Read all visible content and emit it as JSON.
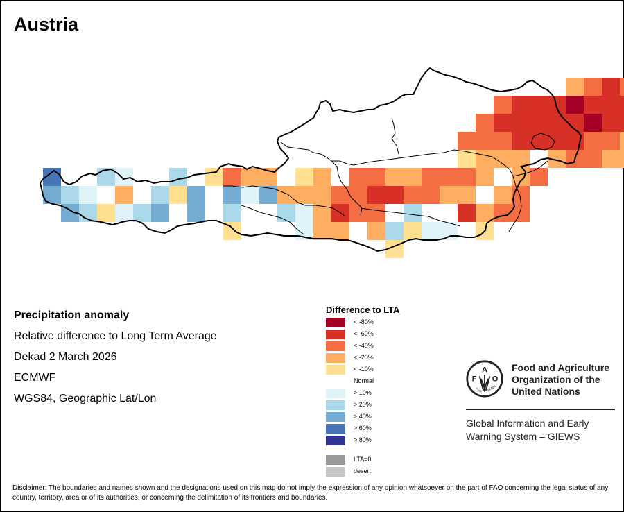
{
  "title": "Austria",
  "info": {
    "heading": "Precipitation anomaly",
    "line1": "Relative difference to Long Term Average",
    "line2": "Dekad 2 March 2026",
    "line3": "ECMWF",
    "line4": "WGS84, Geographic Lat/Lon"
  },
  "legend": {
    "title": "Difference to LTA",
    "items": [
      {
        "label": "< -80%",
        "color": "#a50026"
      },
      {
        "label": "< -60%",
        "color": "#d73027"
      },
      {
        "label": "< -40%",
        "color": "#f46d43"
      },
      {
        "label": "< -20%",
        "color": "#fdae61"
      },
      {
        "label": "< -10%",
        "color": "#fee090"
      },
      {
        "label": "Normal",
        "color": "#ffffff"
      },
      {
        "label": "> 10%",
        "color": "#e0f3f8"
      },
      {
        "label": "> 20%",
        "color": "#abd9e9"
      },
      {
        "label": "> 40%",
        "color": "#74add1"
      },
      {
        "label": "> 60%",
        "color": "#4575b4"
      },
      {
        "label": "> 80%",
        "color": "#313695"
      },
      {
        "label": "LTA=0",
        "color": "#999999"
      },
      {
        "label": "desert",
        "color": "#c8c8c8"
      }
    ]
  },
  "map": {
    "class_codes": {
      "A": "< -80%",
      "R": "< -60%",
      "O": "< -40%",
      "L": "< -20%",
      "Y": "< -10%",
      "W": "Normal",
      "V": "> 10%",
      "B": "> 20%",
      "M": "> 40%",
      "D": "> 60%",
      "N": "> 80%"
    },
    "grid_rows": [
      "..............................LOROLWAW",
      "..........................ORRRARRRAOOLRR.",
      ".........................ORRRRRARROLRRRR.",
      "........................OOORRRROOLOOOLWRR",
      "........................YLLLWLOOLLYLLRRRA",
      ".DWWBVWWBWYOLLWYLWOOLLOOOLWLO..",
      ".MBVWLWBYMWMVMLLLOORROOLLWLOW..",
      ".WMBYVBMWMWBWWBVLROOWBWWRLOO...",
      "...........Y...VLL.LBYVV.Y.....",
      "....................Y.........."
    ]
  },
  "fao": {
    "name_line1": "Food and Agriculture",
    "name_line2": "Organization of the",
    "name_line3": "United Nations",
    "sub_line1": "Global Information and Early",
    "sub_line2": "Warning System – GIEWS",
    "logo_letters": "FAO FIAT PANIS"
  },
  "disclaimer": "Disclaimer: The boundaries and names shown and the designations used on this map do not imply the expression of any opinion whatsoever on the part of FAO concerning the legal status of any country, territory, area or of its authorities, or concerning the delimitation of its frontiers and boundaries."
}
